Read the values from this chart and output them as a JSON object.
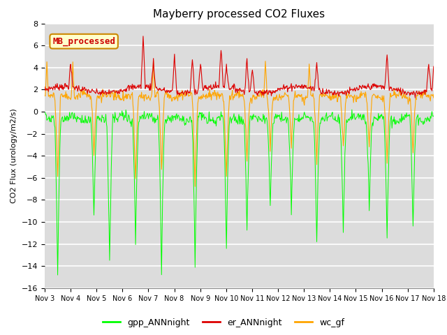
{
  "title": "Mayberry processed CO2 Fluxes",
  "ylabel": "CO2 Flux (urology/m2/s)",
  "ylim": [
    -16,
    8
  ],
  "yticks": [
    -16,
    -14,
    -12,
    -10,
    -8,
    -6,
    -4,
    -2,
    0,
    2,
    4,
    6,
    8
  ],
  "colors": {
    "gpp": "#00ff00",
    "er": "#dd0000",
    "wc": "#ffa500"
  },
  "legend_labels": [
    "gpp_ANNnight",
    "er_ANNnight",
    "wc_gf"
  ],
  "inset_label": "MB_processed",
  "fig_bg": "#ffffff",
  "plot_bg": "#dcdcdc",
  "grid_color": "#ffffff",
  "n_days": 15,
  "pts_per_day": 48
}
